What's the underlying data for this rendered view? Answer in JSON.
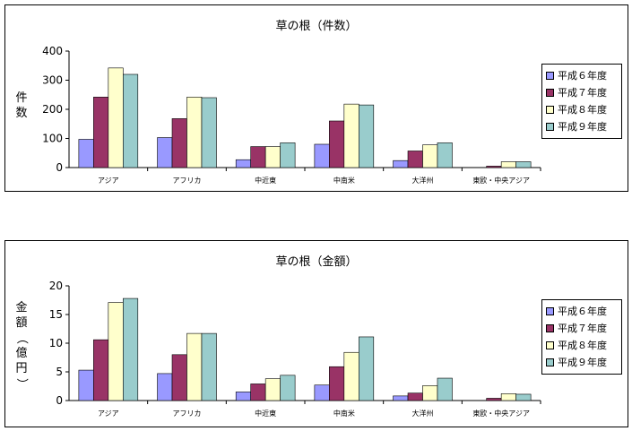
{
  "chart_data": [
    {
      "type": "bar",
      "title": "草の根（件数）",
      "ylabel": "件数",
      "ylim": [
        0,
        400
      ],
      "yticks": [
        0,
        100,
        200,
        300,
        400
      ],
      "categories": [
        "アジア",
        "アフリカ",
        "中近東",
        "中南米",
        "大洋州",
        "東欧・中央アジア"
      ],
      "legend_position": "right",
      "series": [
        {
          "name": "平成６年度",
          "color": "#9999ff",
          "values": [
            97,
            103,
            27,
            80,
            24,
            0
          ]
        },
        {
          "name": "平成７年度",
          "color": "#993366",
          "values": [
            242,
            168,
            72,
            160,
            57,
            5
          ]
        },
        {
          "name": "平成８年度",
          "color": "#ffffcc",
          "values": [
            342,
            242,
            72,
            218,
            78,
            20
          ]
        },
        {
          "name": "平成９年度",
          "color": "#99cccc",
          "values": [
            320,
            240,
            85,
            215,
            85,
            20
          ]
        }
      ]
    },
    {
      "type": "bar",
      "title": "草の根（金額）",
      "ylabel": "金額（億円）",
      "ylim": [
        0,
        20
      ],
      "yticks": [
        0,
        5,
        10,
        15,
        20
      ],
      "categories": [
        "アジア",
        "アフリカ",
        "中近東",
        "中南米",
        "大洋州",
        "東欧・中央アジア"
      ],
      "legend_position": "right",
      "series": [
        {
          "name": "平成６年度",
          "color": "#9999ff",
          "values": [
            5.3,
            4.7,
            1.5,
            2.7,
            0.8,
            0
          ]
        },
        {
          "name": "平成７年度",
          "color": "#993366",
          "values": [
            10.6,
            8.0,
            2.9,
            5.9,
            1.3,
            0.4
          ]
        },
        {
          "name": "平成８年度",
          "color": "#ffffcc",
          "values": [
            17.1,
            11.7,
            3.8,
            8.4,
            2.6,
            1.2
          ]
        },
        {
          "name": "平成９年度",
          "color": "#99cccc",
          "values": [
            17.8,
            11.7,
            4.4,
            11.1,
            3.9,
            1.1
          ]
        }
      ]
    }
  ]
}
